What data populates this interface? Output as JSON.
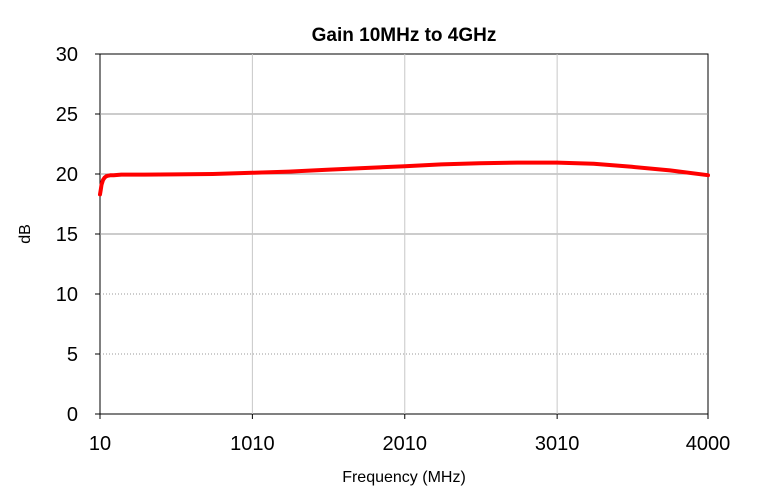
{
  "chart_data": {
    "type": "line",
    "title": "Gain 10MHz to 4GHz",
    "xlabel": "Frequency (MHz)",
    "ylabel": "dB",
    "xlim": [
      10,
      4000
    ],
    "ylim": [
      0,
      30
    ],
    "x_ticks": [
      10,
      1010,
      2010,
      3010,
      4000
    ],
    "y_ticks": [
      0,
      5,
      10,
      15,
      20,
      25,
      30
    ],
    "grid": true,
    "legend": "none",
    "series": [
      {
        "color": "#ff0000",
        "x": [
          10,
          15,
          20,
          30,
          40,
          50,
          60,
          80,
          100,
          150,
          200,
          300,
          500,
          750,
          1010,
          1250,
          1500,
          1750,
          2010,
          2250,
          2500,
          2750,
          3010,
          3250,
          3500,
          3750,
          4000
        ],
        "y": [
          18.3,
          18.7,
          19.1,
          19.5,
          19.7,
          19.8,
          19.85,
          19.9,
          19.9,
          19.95,
          19.95,
          19.95,
          19.97,
          20.0,
          20.1,
          20.2,
          20.35,
          20.5,
          20.65,
          20.8,
          20.9,
          20.95,
          20.95,
          20.85,
          20.6,
          20.3,
          19.9
        ]
      }
    ]
  }
}
